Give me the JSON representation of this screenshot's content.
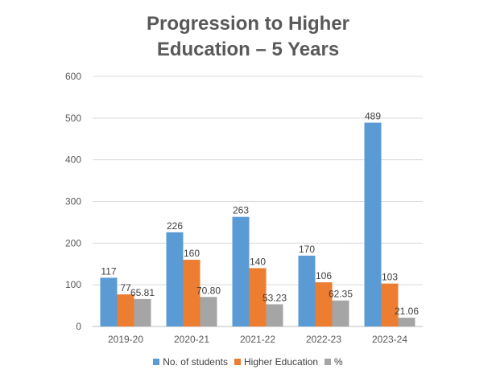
{
  "chart_data": {
    "type": "bar",
    "title_line1": "Progression to Higher",
    "title_line2": "Education – 5 Years",
    "categories": [
      "2019-20",
      "2020-21",
      "2021-22",
      "2022-23",
      "2023-24"
    ],
    "series": [
      {
        "name": "No. of students",
        "color": "#5B9BD5",
        "values": [
          117,
          226,
          263,
          170,
          489
        ],
        "labels": [
          "117",
          "226",
          "263",
          "170",
          "489"
        ]
      },
      {
        "name": "Higher Education",
        "color": "#ED7D31",
        "values": [
          77,
          160,
          140,
          106,
          103
        ],
        "labels": [
          "77",
          "160",
          "140",
          "106",
          "103"
        ]
      },
      {
        "name": "%",
        "color": "#A5A5A5",
        "values": [
          65.81,
          70.8,
          53.23,
          62.35,
          21.06
        ],
        "labels": [
          "65.81",
          "70.80",
          "53.23",
          "62.35",
          "21.06"
        ]
      }
    ],
    "ylim": [
      0,
      600
    ],
    "yticks": [
      "0",
      "100",
      "200",
      "300",
      "400",
      "500",
      "600"
    ],
    "grid": true,
    "legend_position": "bottom"
  }
}
